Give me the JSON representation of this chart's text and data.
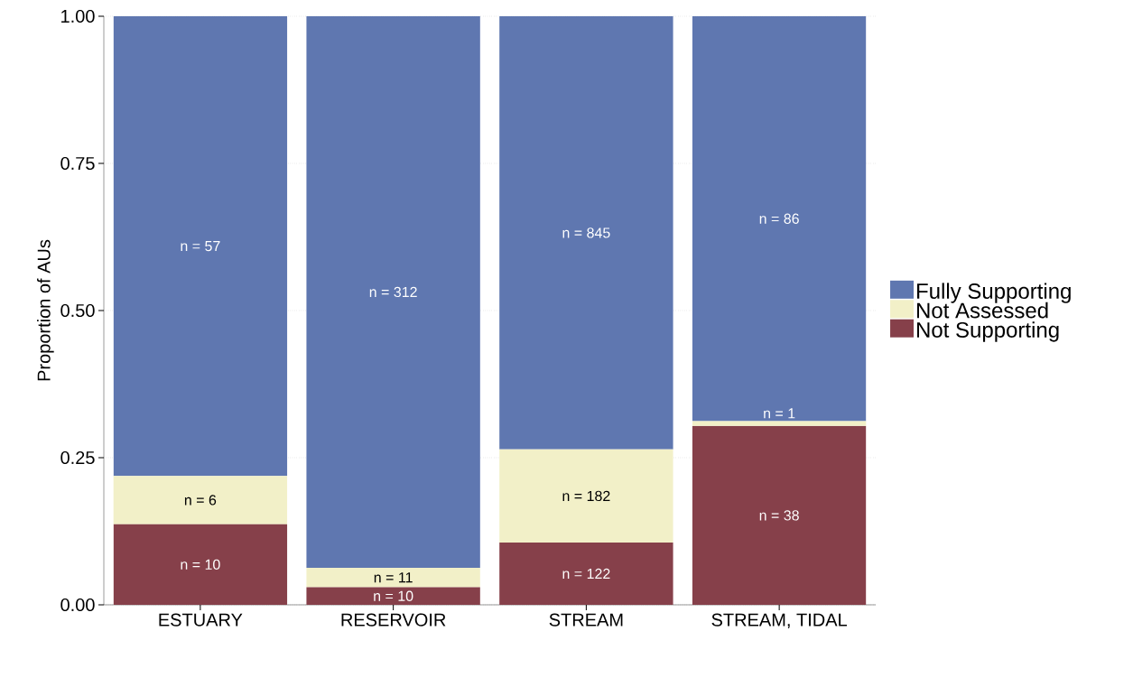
{
  "chart_data": {
    "type": "bar",
    "stacked": true,
    "ylabel": "Proportion of AUs",
    "categories": [
      "ESTUARY",
      "RESERVOIR",
      "STREAM",
      "STREAM, TIDAL"
    ],
    "series": [
      {
        "name": "Not Supporting",
        "color": "#86404a",
        "values": [
          0.137,
          0.03,
          0.106,
          0.304
        ]
      },
      {
        "name": "Not Assessed",
        "color": "#f2f0c8",
        "values": [
          0.082,
          0.033,
          0.158,
          0.008
        ]
      },
      {
        "name": "Fully Supporting",
        "color": "#5f77b0",
        "values": [
          0.781,
          0.937,
          0.736,
          0.688
        ]
      }
    ],
    "annotations": [
      "n = 10",
      "n = 10",
      "n = 122",
      "n = 38",
      "n = 6",
      "n = 11",
      "n = 182",
      "n = 1",
      "n = 57",
      "n = 312",
      "n = 845",
      "n = 86"
    ],
    "ylim": [
      0,
      1
    ],
    "yticks": [
      {
        "value": 0,
        "label": "0.00"
      },
      {
        "value": 0.25,
        "label": "0.25"
      },
      {
        "value": 0.5,
        "label": "0.50"
      },
      {
        "value": 0.75,
        "label": "0.75"
      },
      {
        "value": 1,
        "label": "1.00"
      }
    ],
    "grid": "y",
    "legend": "right"
  }
}
